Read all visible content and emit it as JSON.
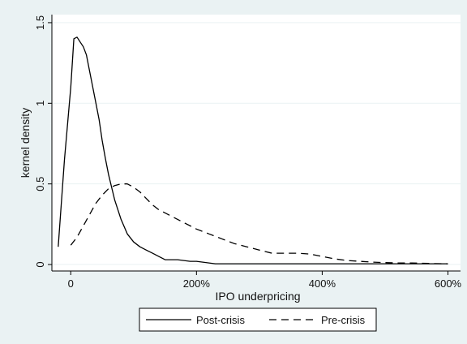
{
  "chart_data": {
    "type": "line",
    "title": "",
    "xlabel": "IPO underpricing",
    "ylabel": "kernel density",
    "xlim": [
      -30,
      620
    ],
    "ylim": [
      -0.04,
      1.55
    ],
    "xticks": [
      {
        "value": 0,
        "label": "0"
      },
      {
        "value": 200,
        "label": "200%"
      },
      {
        "value": 400,
        "label": "400%"
      },
      {
        "value": 600,
        "label": "600%"
      }
    ],
    "yticks": [
      {
        "value": 0,
        "label": "0"
      },
      {
        "value": 0.5,
        "label": "0.5"
      },
      {
        "value": 1,
        "label": "1"
      },
      {
        "value": 1.5,
        "label": "1.5"
      }
    ],
    "grid": "horizontal",
    "legend": "bottom",
    "series": [
      {
        "name": "Post-crisis",
        "style": "solid",
        "color": "#000000",
        "x": [
          -20,
          -10,
          0,
          5,
          10,
          15,
          20,
          25,
          30,
          35,
          40,
          45,
          50,
          55,
          60,
          70,
          80,
          90,
          100,
          110,
          120,
          130,
          140,
          150,
          160,
          170,
          180,
          190,
          200,
          210,
          220,
          230,
          250,
          300,
          350,
          400,
          450,
          500,
          550,
          600
        ],
        "y": [
          0.11,
          0.65,
          1.1,
          1.4,
          1.41,
          1.38,
          1.35,
          1.3,
          1.2,
          1.1,
          1.0,
          0.9,
          0.77,
          0.66,
          0.56,
          0.4,
          0.28,
          0.19,
          0.14,
          0.11,
          0.09,
          0.07,
          0.05,
          0.03,
          0.03,
          0.03,
          0.025,
          0.02,
          0.02,
          0.015,
          0.01,
          0.005,
          0.005,
          0.005,
          0.005,
          0.005,
          0.005,
          0.005,
          0.005,
          0.005
        ]
      },
      {
        "name": "Pre-crisis",
        "style": "dashed",
        "color": "#000000",
        "x": [
          0,
          10,
          20,
          30,
          40,
          50,
          60,
          70,
          80,
          90,
          100,
          110,
          120,
          130,
          140,
          160,
          180,
          200,
          220,
          240,
          260,
          280,
          300,
          320,
          340,
          360,
          380,
          400,
          420,
          440,
          460,
          480,
          500,
          520,
          540,
          560,
          580,
          600
        ],
        "y": [
          0.12,
          0.17,
          0.24,
          0.31,
          0.38,
          0.43,
          0.47,
          0.49,
          0.5,
          0.5,
          0.48,
          0.45,
          0.41,
          0.37,
          0.34,
          0.3,
          0.26,
          0.22,
          0.19,
          0.16,
          0.13,
          0.11,
          0.09,
          0.07,
          0.07,
          0.07,
          0.065,
          0.05,
          0.035,
          0.025,
          0.02,
          0.015,
          0.012,
          0.01,
          0.01,
          0.008,
          0.006,
          0.005
        ]
      }
    ]
  }
}
